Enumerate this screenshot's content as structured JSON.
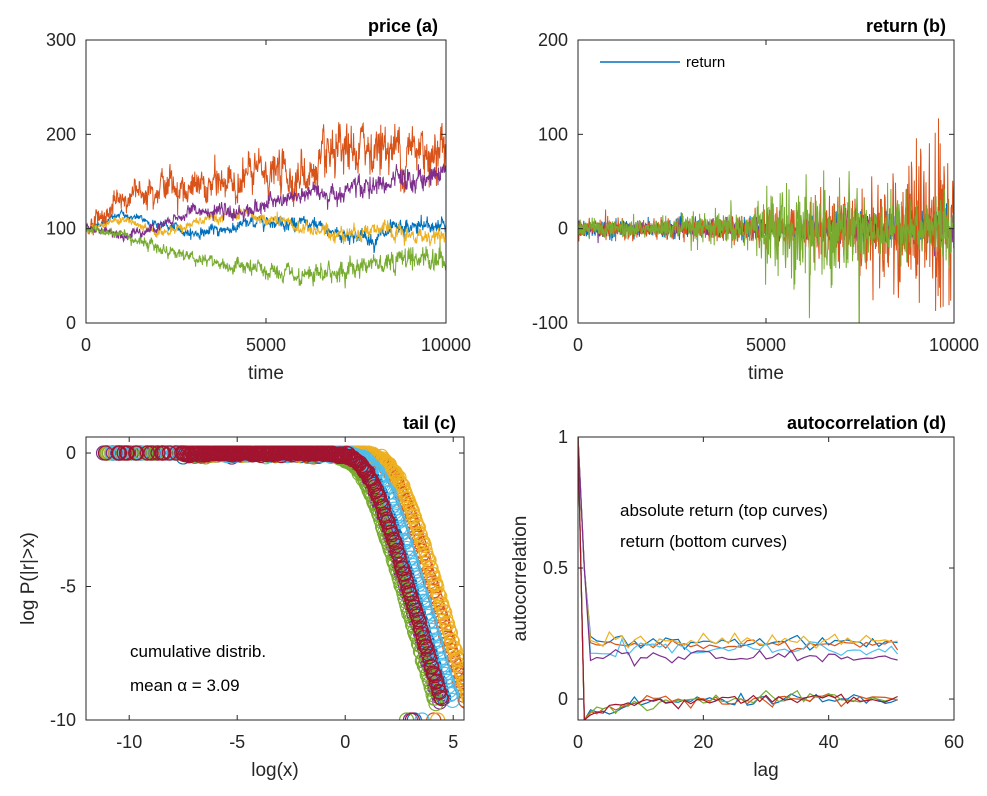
{
  "colors": [
    "#0072BD",
    "#D95319",
    "#EDB120",
    "#7E2F8E",
    "#77AC30",
    "#4DBEEE",
    "#A2142F"
  ],
  "chart_data": [
    {
      "id": "a",
      "type": "line",
      "title": "price (a)",
      "xlabel": "time",
      "ylabel": "",
      "xlim": [
        0,
        10000
      ],
      "ylim": [
        0,
        300
      ],
      "xticks": [
        0,
        5000,
        10000
      ],
      "yticks": [
        0,
        100,
        200,
        300
      ],
      "xtick_labels": [
        "0",
        "5000",
        "10000"
      ],
      "ytick_labels": [
        "0",
        "100",
        "200",
        "300"
      ],
      "series": [
        {
          "color": "#0072BD",
          "x": [
            0,
            1000,
            2000,
            3000,
            4000,
            5000,
            6000,
            7000,
            8000,
            9000,
            10000
          ],
          "y": [
            100,
            115,
            105,
            95,
            100,
            110,
            105,
            95,
            90,
            100,
            105
          ],
          "spread": 6
        },
        {
          "color": "#D95319",
          "x": [
            0,
            1000,
            2000,
            3000,
            4000,
            5000,
            6000,
            7000,
            8000,
            9000,
            10000
          ],
          "y": [
            100,
            130,
            150,
            140,
            150,
            160,
            155,
            170,
            190,
            180,
            195
          ],
          "spread": 20
        },
        {
          "color": "#EDB120",
          "x": [
            0,
            1000,
            2000,
            3000,
            4000,
            5000,
            6000,
            7000,
            8000,
            9000,
            10000
          ],
          "y": [
            100,
            110,
            95,
            105,
            115,
            110,
            100,
            95,
            100,
            90,
            95
          ],
          "spread": 6
        },
        {
          "color": "#7E2F8E",
          "x": [
            0,
            1000,
            2000,
            3000,
            4000,
            5000,
            6000,
            7000,
            8000,
            9000,
            10000
          ],
          "y": [
            100,
            95,
            100,
            120,
            115,
            125,
            135,
            140,
            145,
            150,
            160
          ],
          "spread": 8
        },
        {
          "color": "#77AC30",
          "x": [
            0,
            1000,
            2000,
            3000,
            4000,
            5000,
            6000,
            7000,
            8000,
            9000,
            10000
          ],
          "y": [
            100,
            95,
            80,
            70,
            60,
            55,
            45,
            55,
            65,
            70,
            70
          ],
          "spread": 8
        }
      ]
    },
    {
      "id": "b",
      "type": "line",
      "title": "return (b)",
      "xlabel": "time",
      "ylabel": "",
      "xlim": [
        0,
        10000
      ],
      "ylim": [
        -100,
        200
      ],
      "xticks": [
        0,
        5000,
        10000
      ],
      "yticks": [
        -100,
        0,
        100,
        200
      ],
      "xtick_labels": [
        "0",
        "5000",
        "10000"
      ],
      "ytick_labels": [
        "-100",
        "0",
        "100",
        "200"
      ],
      "legend": {
        "entries": [
          {
            "name": "return",
            "color": "#0072BD"
          }
        ],
        "placement": "top-left"
      },
      "series": [
        {
          "color": "#0072BD",
          "x": [
            0,
            2000,
            4000,
            6000,
            8000,
            10000
          ],
          "y": [
            0,
            0,
            0,
            0,
            0,
            0
          ],
          "amp": [
            12,
            10,
            10,
            15,
            20,
            25
          ]
        },
        {
          "color": "#7E2F8E",
          "x": [
            0,
            2000,
            4000,
            6000,
            8000,
            10000
          ],
          "y": [
            0,
            0,
            0,
            0,
            0,
            0
          ],
          "amp": [
            8,
            8,
            10,
            12,
            15,
            20
          ]
        },
        {
          "color": "#D95319",
          "x": [
            0,
            2000,
            4000,
            6000,
            8000,
            10000
          ],
          "y": [
            0,
            0,
            0,
            0,
            0,
            0
          ],
          "amp": [
            10,
            12,
            15,
            30,
            60,
            120
          ]
        },
        {
          "color": "#77AC30",
          "x": [
            0,
            2000,
            4000,
            6000,
            8000,
            10000
          ],
          "y": [
            0,
            0,
            0,
            0,
            0,
            0
          ],
          "amp": [
            10,
            12,
            20,
            60,
            40,
            35
          ]
        }
      ]
    },
    {
      "id": "c",
      "type": "scatter",
      "title": "tail (c)",
      "xlabel": "log(x)",
      "ylabel": "log P(|r|>x)",
      "xlim": [
        -12,
        5.5
      ],
      "ylim": [
        -10,
        0.6
      ],
      "xticks": [
        -10,
        -5,
        0,
        5
      ],
      "yticks": [
        -10,
        -5,
        0
      ],
      "xtick_labels": [
        "-10",
        "-5",
        "0",
        "5"
      ],
      "ytick_labels": [
        "-10",
        "-5",
        "0"
      ],
      "annotations": [
        "cumulative distrib.",
        "mean α = 3.09"
      ],
      "series": [
        {
          "color": "#0072BD",
          "shift": 0.0
        },
        {
          "color": "#D95319",
          "shift": 1.0
        },
        {
          "color": "#EDB120",
          "shift": 1.2
        },
        {
          "color": "#7E2F8E",
          "shift": -0.2
        },
        {
          "color": "#77AC30",
          "shift": -0.4
        },
        {
          "color": "#4DBEEE",
          "shift": 0.4
        },
        {
          "color": "#A2142F",
          "shift": -0.1
        }
      ]
    },
    {
      "id": "d",
      "type": "line",
      "title": "autocorrelation (d)",
      "xlabel": "lag",
      "ylabel": "autocorrelation",
      "xlim": [
        0,
        60
      ],
      "ylim": [
        -0.08,
        1
      ],
      "xticks": [
        0,
        20,
        40,
        60
      ],
      "yticks": [
        0,
        0.5,
        1
      ],
      "xtick_labels": [
        "0",
        "20",
        "40",
        "60"
      ],
      "ytick_labels": [
        "0",
        "0.5",
        "1"
      ],
      "annotations": [
        "absolute return (top curves)",
        "return (bottom curves)"
      ],
      "series": [
        {
          "color": "#0072BD",
          "level": 0.22
        },
        {
          "color": "#D95319",
          "level": 0.21
        },
        {
          "color": "#EDB120",
          "level": 0.22
        },
        {
          "color": "#4DBEEE",
          "level": 0.19
        },
        {
          "color": "#7E2F8E",
          "level": 0.16
        },
        {
          "color": "#0072BD",
          "level": 0.0,
          "low": true
        },
        {
          "color": "#D95319",
          "level": 0.0,
          "low": true
        },
        {
          "color": "#77AC30",
          "level": 0.0,
          "low": true
        },
        {
          "color": "#A2142F",
          "level": 0.0,
          "low": true
        }
      ]
    }
  ]
}
